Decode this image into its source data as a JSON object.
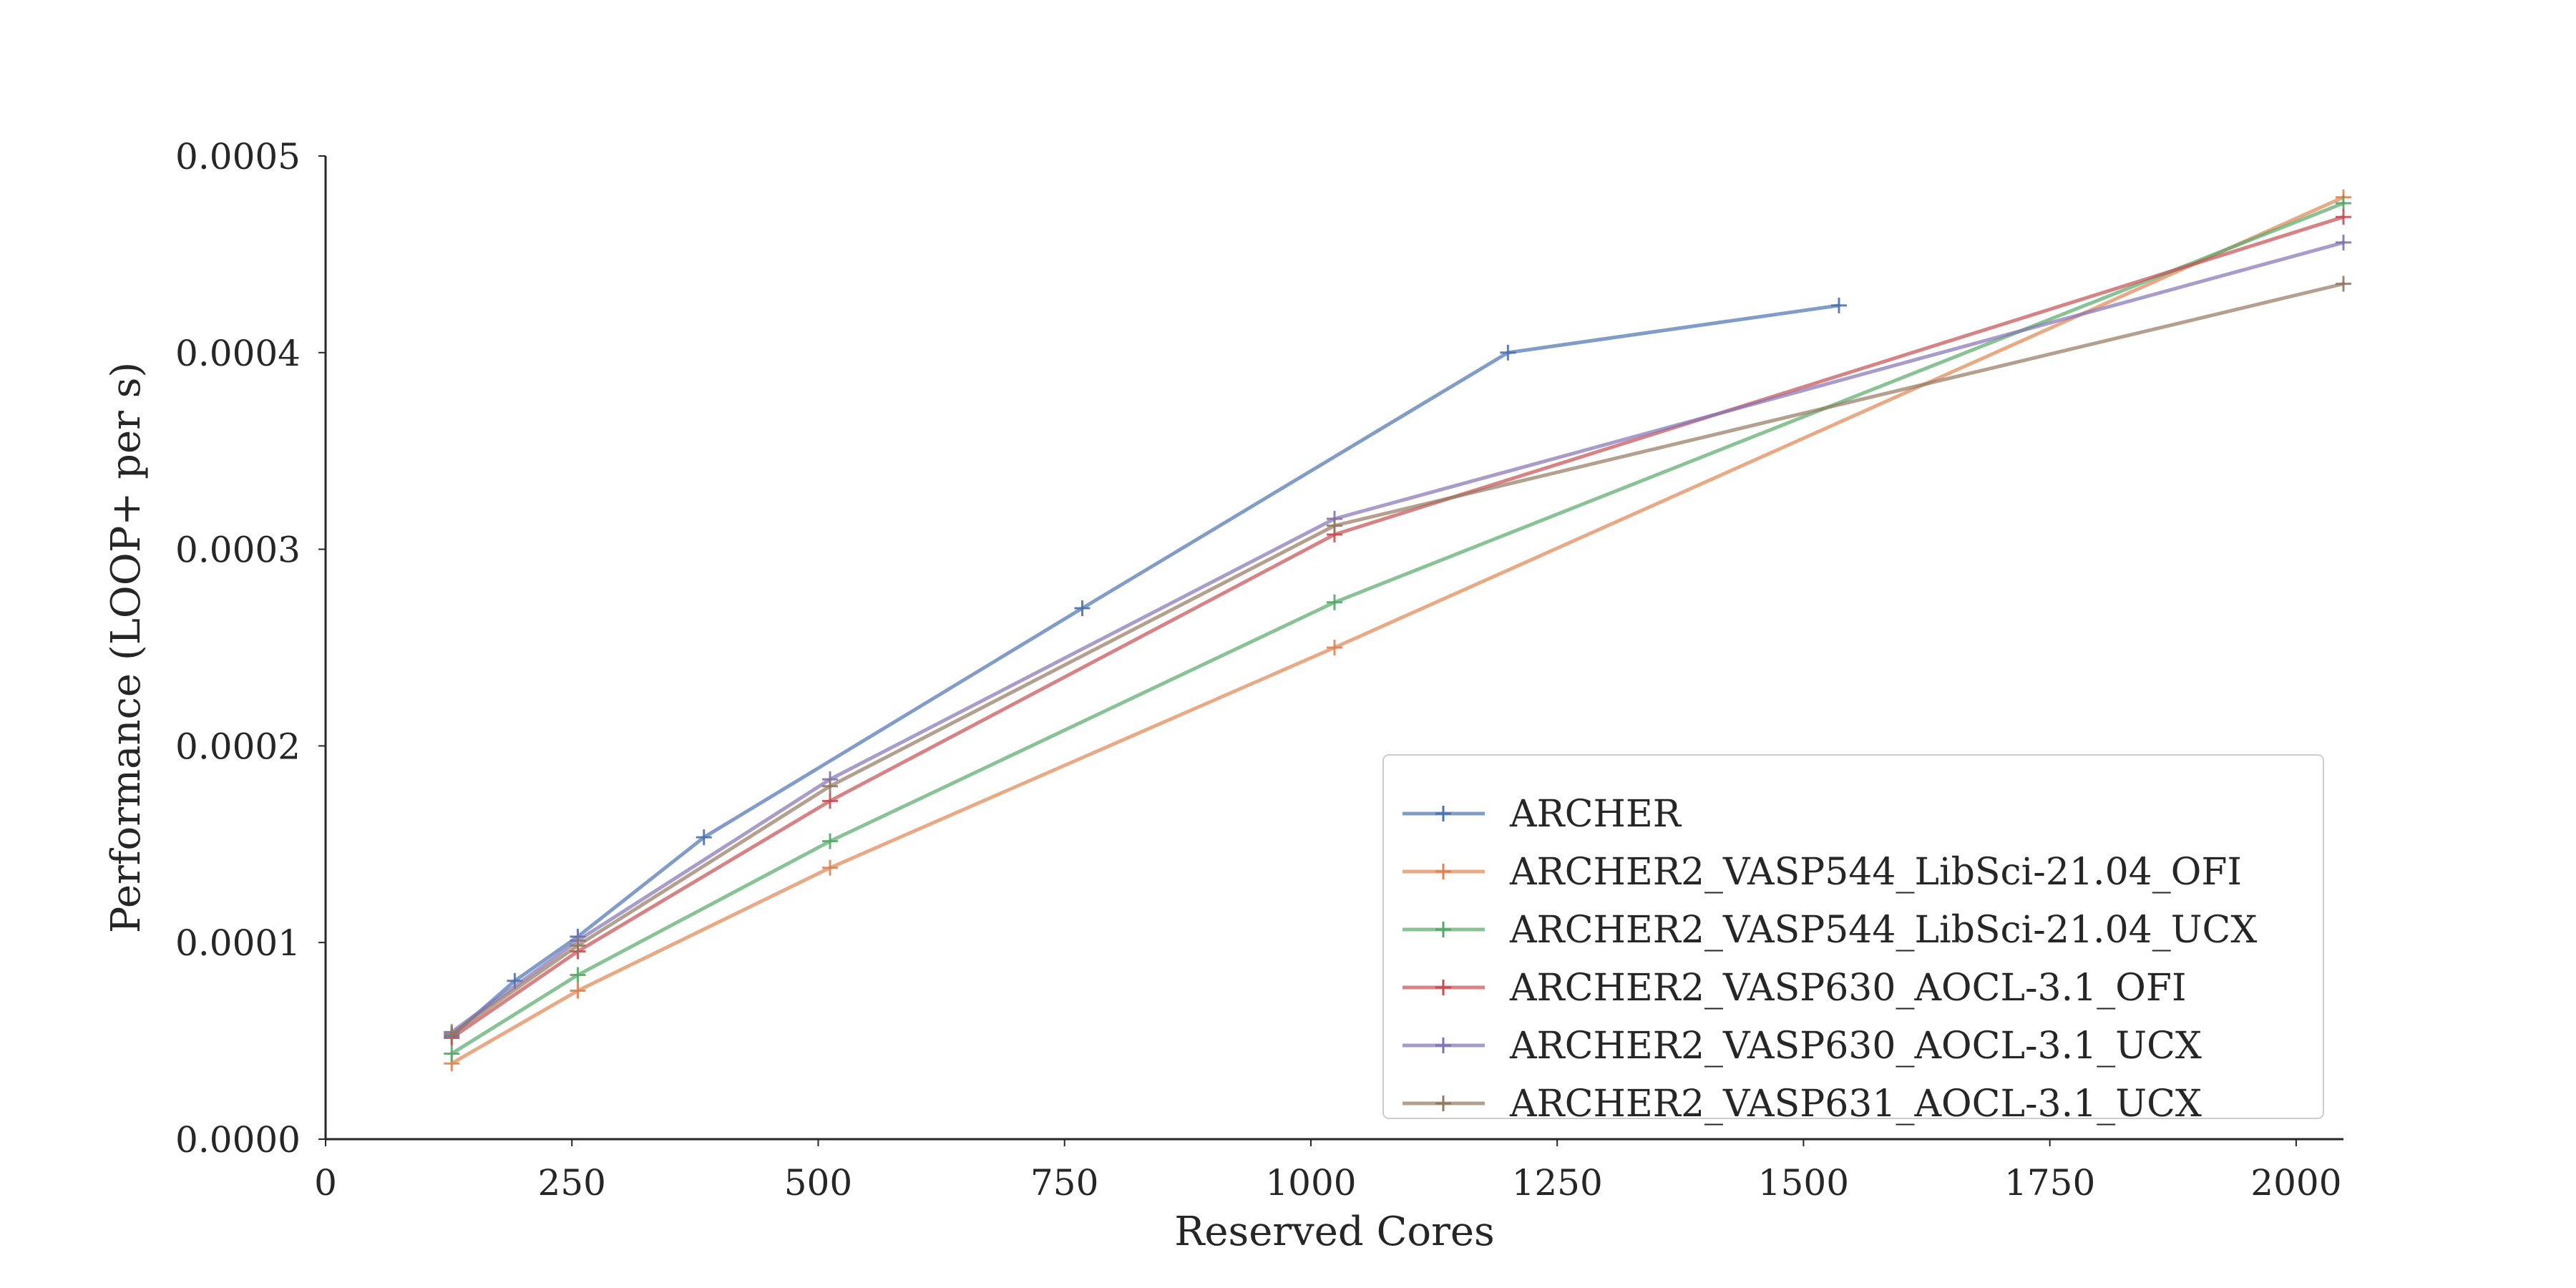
{
  "chart_data": {
    "type": "line",
    "title": "",
    "xlabel": "Reserved Cores",
    "ylabel": "Performance (LOOP+ per s)",
    "xlim": [
      0,
      2048
    ],
    "ylim": [
      0,
      0.0005
    ],
    "xticks": [
      0,
      250,
      500,
      750,
      1000,
      1250,
      1500,
      1750,
      2000
    ],
    "xtick_labels": [
      "0",
      "250",
      "500",
      "750",
      "1000",
      "1250",
      "1500",
      "1750",
      "2000"
    ],
    "yticks": [
      0,
      0.0001,
      0.0002,
      0.0003,
      0.0004,
      0.0005
    ],
    "ytick_labels": [
      "0.0000",
      "0.0001",
      "0.0002",
      "0.0003",
      "0.0004",
      "0.0005"
    ],
    "grid": false,
    "marker": "+",
    "legend_position": "lower-right",
    "series": [
      {
        "name": "ARCHER",
        "color": "#4c72b0",
        "points": [
          [
            128,
            5.25e-05
          ],
          [
            192,
            8.05e-05
          ],
          [
            256,
            0.000103
          ],
          [
            384,
            0.0001535
          ],
          [
            768,
            0.00027
          ],
          [
            1200,
            0.0004
          ],
          [
            1536,
            0.000424
          ]
        ]
      },
      {
        "name": "ARCHER2_VASP544_LibSci-21.04_OFI",
        "color": "#dd8452",
        "points": [
          [
            128,
            3.85e-05
          ],
          [
            256,
            7.55e-05
          ],
          [
            512,
            0.000138
          ],
          [
            1024,
            0.00025
          ],
          [
            2048,
            0.000479
          ]
        ]
      },
      {
        "name": "ARCHER2_VASP544_LibSci-21.04_UCX",
        "color": "#55a868",
        "points": [
          [
            128,
            4.35e-05
          ],
          [
            256,
            8.35e-05
          ],
          [
            512,
            0.0001515
          ],
          [
            1024,
            0.000273
          ],
          [
            2048,
            0.000476
          ]
        ]
      },
      {
        "name": "ARCHER2_VASP630_AOCL-3.1_OFI",
        "color": "#c44e52",
        "points": [
          [
            128,
            5.15e-05
          ],
          [
            256,
            9.55e-05
          ],
          [
            512,
            0.000172
          ],
          [
            1024,
            0.0003075
          ],
          [
            2048,
            0.000469
          ]
        ]
      },
      {
        "name": "ARCHER2_VASP630_AOCL-3.1_UCX",
        "color": "#8172b3",
        "points": [
          [
            128,
            5.45e-05
          ],
          [
            256,
            0.000101
          ],
          [
            512,
            0.000183
          ],
          [
            1024,
            0.0003155
          ],
          [
            2048,
            0.000456
          ]
        ]
      },
      {
        "name": "ARCHER2_VASP631_AOCL-3.1_UCX",
        "color": "#937860",
        "points": [
          [
            128,
            5.35e-05
          ],
          [
            256,
            9.85e-05
          ],
          [
            512,
            0.0001795
          ],
          [
            1024,
            0.000312
          ],
          [
            2048,
            0.000435
          ]
        ]
      }
    ]
  }
}
